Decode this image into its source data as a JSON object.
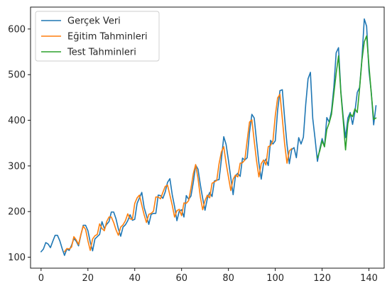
{
  "chart_data": {
    "type": "line",
    "title": "",
    "xlabel": "",
    "ylabel": "",
    "xlim": [
      -4.5,
      146.5
    ],
    "ylim": [
      76,
      648
    ],
    "grid": false,
    "legend_position": "top-left",
    "x_ticks": [
      0,
      20,
      40,
      60,
      80,
      100,
      120,
      140
    ],
    "y_ticks": [
      100,
      200,
      300,
      400,
      500,
      600
    ],
    "series": [
      {
        "name": "Gerçek Veri",
        "color": "#1f77b4",
        "x_start": 0,
        "values": [
          112,
          118,
          132,
          129,
          121,
          135,
          148,
          148,
          136,
          119,
          104,
          118,
          115,
          126,
          141,
          135,
          125,
          149,
          170,
          170,
          158,
          133,
          114,
          140,
          145,
          150,
          178,
          163,
          172,
          178,
          199,
          199,
          184,
          162,
          146,
          166,
          171,
          180,
          193,
          181,
          183,
          218,
          230,
          242,
          209,
          191,
          172,
          194,
          196,
          196,
          236,
          235,
          229,
          243,
          264,
          272,
          237,
          211,
          180,
          201,
          204,
          188,
          235,
          227,
          234,
          264,
          302,
          293,
          259,
          229,
          203,
          229,
          242,
          233,
          267,
          269,
          270,
          315,
          364,
          347,
          312,
          274,
          237,
          278,
          284,
          277,
          317,
          313,
          318,
          374,
          413,
          405,
          355,
          306,
          271,
          306,
          315,
          301,
          356,
          348,
          355,
          422,
          465,
          467,
          404,
          347,
          305,
          336,
          340,
          318,
          362,
          348,
          363,
          435,
          491,
          505,
          404,
          359,
          310,
          337,
          360,
          342,
          406,
          396,
          420,
          472,
          548,
          559,
          463,
          407,
          362,
          405,
          417,
          391,
          419,
          461,
          472,
          535,
          622,
          606,
          508,
          461,
          390,
          432
        ]
      },
      {
        "name": "Eğitim Tahminleri",
        "color": "#ff7f0e",
        "x_start": 10,
        "values": [
          112,
          119,
          118,
          122,
          145,
          138,
          128,
          150,
          168,
          161,
          136,
          115,
          140,
          147,
          150,
          173,
          163,
          158,
          178,
          188,
          188,
          176,
          160,
          148,
          166,
          171,
          180,
          195,
          184,
          183,
          218,
          230,
          236,
          214,
          193,
          176,
          194,
          196,
          201,
          232,
          232,
          228,
          242,
          255,
          258,
          236,
          214,
          188,
          202,
          205,
          191,
          219,
          218,
          224,
          251,
          283,
          303,
          273,
          232,
          204,
          224,
          236,
          230,
          262,
          265,
          268,
          305,
          331,
          342,
          306,
          276,
          246,
          271,
          280,
          276,
          306,
          307,
          313,
          356,
          396,
          401,
          355,
          311,
          276,
          305,
          313,
          302,
          342,
          345,
          355,
          410,
          449,
          457,
          404,
          348,
          306,
          333,
          338
        ]
      },
      {
        "name": "Test Tahminleri",
        "color": "#2ca02c",
        "x_start": 118,
        "values": [
          318,
          333,
          355,
          342,
          380,
          394,
          413,
          458,
          503,
          541,
          460,
          400,
          335,
          393,
          414,
          408,
          425,
          417,
          470,
          532,
          572,
          585,
          520,
          458,
          402,
          405
        ]
      }
    ]
  }
}
